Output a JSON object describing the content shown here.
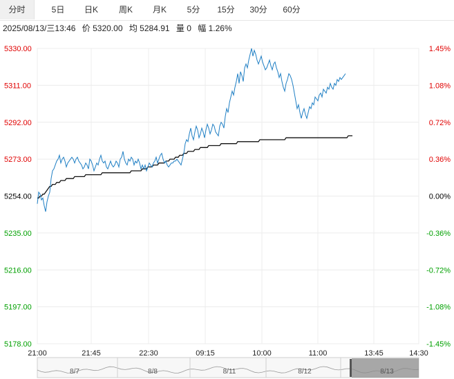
{
  "tabs": [
    {
      "label": "分时",
      "active": true
    },
    {
      "label": "5日"
    },
    {
      "label": "日K"
    },
    {
      "label": "周K"
    },
    {
      "label": "月K"
    },
    {
      "label": "5分"
    },
    {
      "label": "15分"
    },
    {
      "label": "30分"
    },
    {
      "label": "60分"
    }
  ],
  "info": {
    "datetime": "2025/08/13/三13:46",
    "price": "价 5320.00",
    "avg": "均 5284.91",
    "volume": "量 0",
    "change": "幅 1.26%"
  },
  "colors": {
    "up": "#e00000",
    "down": "#00a000",
    "base": "#000000",
    "price_line": "#1f7fc4",
    "avg_line": "#111111"
  },
  "chart_data": {
    "type": "line",
    "base_price": 5254.0,
    "ylim": [
      5178.0,
      5330.0
    ],
    "y_ticks": [
      "5330.00",
      "5311.00",
      "5292.00",
      "5273.00",
      "5254.00",
      "5235.00",
      "5216.00",
      "5197.00",
      "5178.00"
    ],
    "pct_ticks": [
      "1.45%",
      "1.08%",
      "0.72%",
      "0.36%",
      "0.00%",
      "-0.36%",
      "-0.72%",
      "-1.08%",
      "-1.45%"
    ],
    "x_ticks": [
      "21:00",
      "21:45",
      "22:30",
      "09:15",
      "10:00",
      "11:00",
      "13:45",
      "14:30"
    ],
    "grid": true,
    "series": [
      {
        "x": [
          0,
          1,
          2,
          3,
          4,
          5,
          6,
          7,
          8,
          9,
          10,
          11,
          12,
          13,
          14,
          15,
          16,
          17,
          18,
          19,
          20,
          21,
          22,
          23,
          24,
          25,
          26,
          27,
          28,
          29,
          30,
          31,
          32,
          33,
          34,
          35,
          36,
          37,
          38,
          39,
          40,
          41,
          42,
          43,
          44,
          45,
          46,
          47,
          48,
          49,
          50,
          51,
          52,
          53,
          54,
          55,
          56,
          57,
          58,
          59,
          60,
          61,
          62,
          63,
          64,
          65,
          66,
          67,
          68,
          69,
          70,
          71,
          72,
          73,
          74,
          75,
          76,
          77,
          78,
          79,
          80,
          81,
          82,
          83,
          84,
          85,
          86,
          87,
          88,
          89,
          90,
          91,
          92,
          93,
          94,
          95,
          96,
          97,
          98,
          99,
          100,
          101,
          102,
          103,
          104,
          105,
          106,
          107,
          108,
          109,
          110,
          111,
          112,
          113,
          114,
          115,
          116,
          117,
          118,
          119,
          120,
          121,
          122,
          123,
          124,
          125,
          126,
          127,
          128,
          129,
          130,
          131,
          132,
          133,
          134,
          135,
          136,
          137,
          138,
          139,
          140,
          141,
          142,
          143,
          144,
          145,
          146,
          147,
          148,
          149,
          150,
          151,
          152,
          153,
          154,
          155,
          156,
          157,
          158,
          159,
          160,
          161,
          162,
          163,
          164,
          165,
          166,
          167,
          168,
          169,
          170,
          171,
          172,
          173,
          174,
          175,
          176,
          177,
          178,
          179,
          180,
          181,
          182,
          183,
          184,
          185,
          186,
          187,
          188,
          189,
          190,
          191,
          192,
          193,
          194,
          195,
          196,
          197,
          198,
          199,
          200,
          201,
          202,
          203,
          204,
          205,
          206,
          207,
          208,
          209,
          210,
          211,
          212,
          213,
          214,
          215,
          216,
          217,
          218,
          219,
          220,
          221,
          222,
          223,
          224,
          225,
          226,
          227,
          228,
          229,
          230,
          231,
          232,
          233,
          234,
          235,
          236,
          237,
          238,
          239,
          240,
          241,
          242,
          243,
          244,
          245,
          246,
          247,
          248,
          249,
          250,
          251,
          252,
          253,
          254,
          255,
          256,
          257,
          258,
          259,
          260,
          261,
          262,
          263,
          264,
          265,
          266,
          267,
          268,
          269,
          270,
          271,
          272,
          273,
          274,
          275,
          276,
          277,
          278,
          279,
          280,
          281,
          282,
          283,
          284,
          285,
          286,
          287,
          288,
          289,
          290,
          291,
          292,
          293,
          294,
          295,
          296,
          297,
          298,
          299,
          300,
          301,
          302,
          303,
          304,
          305,
          306,
          307,
          308,
          309,
          310,
          311,
          312,
          313,
          314,
          315,
          316,
          317,
          318,
          319,
          320,
          321,
          322,
          323,
          324,
          325,
          326,
          327,
          328,
          329,
          330,
          331,
          332,
          333,
          334,
          335,
          336,
          337,
          338,
          339,
          340,
          341,
          342,
          343,
          344,
          345,
          346,
          347,
          348,
          349,
          350,
          351,
          352,
          353,
          354,
          355,
          356,
          357,
          358,
          359,
          360,
          361,
          362,
          363,
          364,
          365,
          366,
          367,
          368,
          369,
          370,
          371,
          372,
          373,
          374,
          375,
          376,
          377,
          378,
          379,
          380,
          381,
          382,
          383,
          384,
          385,
          386,
          387,
          388,
          389,
          390,
          391,
          392,
          393,
          394,
          395,
          396,
          397,
          398,
          399,
          400,
          401,
          402,
          403,
          404,
          405,
          406,
          407,
          408,
          409,
          410,
          411,
          412,
          413,
          414,
          415,
          416,
          417,
          418,
          419,
          420,
          421,
          422,
          423,
          424,
          425,
          426,
          427,
          428,
          429,
          430,
          431,
          432,
          433,
          434,
          435,
          436,
          437,
          438,
          439,
          440,
          441,
          442,
          443,
          444,
          445,
          446,
          447,
          448,
          449,
          450
        ],
        "price": [
          5250,
          5256,
          5255,
          5252,
          5253,
          5249,
          5246,
          5251,
          5254,
          5256,
          5263,
          5267,
          5268,
          5270,
          5272,
          5273,
          5275,
          5271,
          5273,
          5274,
          5272,
          5269,
          5271,
          5272,
          5273,
          5274,
          5273,
          5271,
          5273,
          5274,
          5272,
          5271,
          5270,
          5268,
          5269,
          5271,
          5270,
          5268,
          5273,
          5272,
          5270,
          5267,
          5269,
          5271,
          5270,
          5273,
          5275,
          5272,
          5271,
          5272,
          5269,
          5268,
          5270,
          5272,
          5270,
          5269,
          5270,
          5272,
          5271,
          5269,
          5273,
          5274,
          5277,
          5273,
          5271,
          5270,
          5273,
          5272,
          5274,
          5273,
          5270,
          5272,
          5271,
          5273,
          5271,
          5268,
          5270,
          5268,
          5270,
          5267,
          5269,
          5271,
          5270,
          5269,
          5271,
          5272,
          5274,
          5271,
          5273,
          5275,
          5276,
          5273,
          5271,
          5272,
          5270,
          5269,
          5270,
          5271,
          5271,
          5272,
          5272,
          5273,
          5272,
          5271,
          5270,
          5273,
          5276,
          5281,
          5283,
          5282,
          5286,
          5289,
          5285,
          5283,
          5287,
          5290,
          5288,
          5284,
          5286,
          5289,
          5287,
          5284,
          5288,
          5291,
          5289,
          5286,
          5288,
          5291,
          5290,
          5287,
          5286,
          5285,
          5290,
          5292,
          5291,
          5289,
          5295,
          5299,
          5297,
          5302,
          5305,
          5308,
          5306,
          5310,
          5313,
          5317,
          5312,
          5318,
          5316,
          5313,
          5320,
          5322,
          5320,
          5324,
          5327,
          5330,
          5326,
          5329,
          5327,
          5324,
          5322,
          5324,
          5326,
          5323,
          5321,
          5319,
          5320,
          5322,
          5324,
          5321,
          5319,
          5322,
          5323,
          5320,
          5318,
          5315,
          5317,
          5313,
          5310,
          5308,
          5312,
          5314,
          5317,
          5316,
          5314,
          5311,
          5307,
          5303,
          5299,
          5301,
          5297,
          5294,
          5297,
          5299,
          5296,
          5294,
          5297,
          5300,
          5299,
          5302,
          5301,
          5305,
          5304,
          5303,
          5306,
          5307,
          5305,
          5309,
          5308,
          5307,
          5310,
          5309,
          5312,
          5310,
          5309,
          5312,
          5311,
          5314,
          5313,
          5315,
          5314,
          5315,
          5316,
          5317
        ],
        "avg": [
          5253,
          5253,
          5254,
          5254,
          5255,
          5255,
          5256,
          5257,
          5258,
          5259,
          5259,
          5260,
          5260,
          5260,
          5261,
          5261,
          5261,
          5262,
          5262,
          5262,
          5262,
          5263,
          5263,
          5263,
          5263,
          5263,
          5263,
          5264,
          5264,
          5264,
          5264,
          5264,
          5264,
          5264,
          5264,
          5265,
          5265,
          5265,
          5265,
          5265,
          5265,
          5265,
          5265,
          5265,
          5265,
          5265,
          5265,
          5266,
          5266,
          5266,
          5266,
          5266,
          5266,
          5266,
          5266,
          5266,
          5266,
          5266,
          5266,
          5266,
          5266,
          5266,
          5266,
          5266,
          5266,
          5266,
          5266,
          5266,
          5267,
          5267,
          5267,
          5267,
          5267,
          5267,
          5267,
          5267,
          5268,
          5268,
          5268,
          5268,
          5269,
          5269,
          5269,
          5269,
          5270,
          5270,
          5270,
          5270,
          5271,
          5271,
          5271,
          5271,
          5271,
          5272,
          5272,
          5272,
          5273,
          5273,
          5273,
          5273,
          5274,
          5274,
          5274,
          5275,
          5275,
          5275,
          5276,
          5276,
          5276,
          5277,
          5277,
          5277,
          5277,
          5277,
          5278,
          5278,
          5278,
          5278,
          5279,
          5279,
          5279,
          5279,
          5279,
          5279,
          5280,
          5280,
          5280,
          5280,
          5280,
          5280,
          5280,
          5280,
          5280,
          5281,
          5281,
          5281,
          5281,
          5281,
          5281,
          5281,
          5281,
          5281,
          5281,
          5281,
          5281,
          5282,
          5282,
          5282,
          5282,
          5282,
          5282,
          5282,
          5282,
          5282,
          5282,
          5282,
          5282,
          5282,
          5282,
          5282,
          5282,
          5283,
          5283,
          5283,
          5283,
          5283,
          5283,
          5283,
          5283,
          5283,
          5283,
          5283,
          5283,
          5283,
          5283,
          5283,
          5283,
          5283,
          5283,
          5283,
          5284,
          5284,
          5284,
          5284,
          5284,
          5284,
          5284,
          5284,
          5284,
          5284,
          5284,
          5284,
          5284,
          5284,
          5284,
          5284,
          5284,
          5284,
          5284,
          5284,
          5284,
          5284,
          5284,
          5284,
          5284,
          5284,
          5284,
          5284,
          5284,
          5284,
          5284,
          5284,
          5284,
          5284,
          5284,
          5284,
          5284,
          5284,
          5284,
          5284,
          5284,
          5284,
          5284,
          5284,
          5284,
          5285,
          5285,
          5285,
          5285
        ]
      }
    ],
    "navigator_labels": [
      "8/7",
      "8/8",
      "8/11",
      "8/12",
      "8/13"
    ]
  }
}
